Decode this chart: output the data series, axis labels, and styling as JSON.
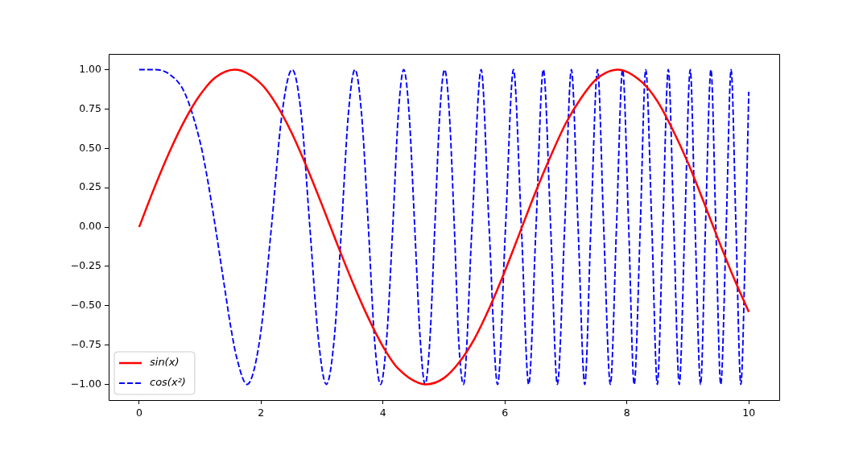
{
  "chart_data": {
    "type": "line",
    "xlim": [
      -0.5,
      10.5
    ],
    "ylim": [
      -1.1,
      1.1
    ],
    "xticks": [
      0,
      2,
      4,
      6,
      8,
      10
    ],
    "yticks": [
      {
        "value": -1,
        "label": "−1.00"
      },
      {
        "value": -0.75,
        "label": "−0.75"
      },
      {
        "value": -0.5,
        "label": "−0.50"
      },
      {
        "value": -0.25,
        "label": "−0.25"
      },
      {
        "value": 0,
        "label": "0.00"
      },
      {
        "value": 0.25,
        "label": "0.25"
      },
      {
        "value": 0.5,
        "label": "0.50"
      },
      {
        "value": 0.75,
        "label": "0.75"
      },
      {
        "value": 1,
        "label": "1.00"
      }
    ],
    "legend": "bottom left",
    "series": [
      {
        "name": "sin(x)",
        "color": "#ff0000",
        "line_style": "solid",
        "x": [
          0,
          0.25,
          0.5,
          0.75,
          1,
          1.25,
          1.57,
          2,
          2.25,
          2.5,
          2.75,
          3,
          3.25,
          3.5,
          3.75,
          4,
          4.25,
          4.71,
          5,
          5.25,
          5.5,
          5.75,
          6,
          6.25,
          6.5,
          6.75,
          7,
          7.25,
          7.5,
          7.85,
          8.25,
          8.5,
          8.75,
          9,
          9.25,
          9.5,
          9.75,
          10
        ],
        "values": [
          0,
          0.25,
          0.48,
          0.68,
          0.84,
          0.95,
          1,
          0.91,
          0.78,
          0.6,
          0.38,
          0.14,
          -0.11,
          -0.35,
          -0.57,
          -0.76,
          -0.9,
          -1,
          -0.96,
          -0.86,
          -0.71,
          -0.51,
          -0.28,
          -0.03,
          0.22,
          0.45,
          0.66,
          0.82,
          0.94,
          1,
          0.92,
          0.8,
          0.62,
          0.41,
          0.17,
          -0.08,
          -0.32,
          -0.54
        ]
      },
      {
        "name": "cos(x²)",
        "color": "#0000ff",
        "line_style": "dashed",
        "x": [
          0,
          0.25,
          0.5,
          0.75,
          1,
          1.1,
          1.25,
          1.4,
          1.5,
          1.6,
          1.77,
          1.98,
          2.17,
          2.34,
          2.51,
          2.66,
          2.8,
          2.94,
          3.07,
          3.2,
          3.32,
          3.43,
          3.54,
          3.65,
          3.76,
          3.86,
          3.96,
          4.06,
          4.16,
          4.25,
          4.34,
          4.43,
          4.52,
          4.61,
          4.69,
          4.77,
          4.85,
          4.93,
          5.01,
          5.09,
          5.17,
          5.24,
          5.32,
          5.46,
          5.61,
          5.74,
          5.88,
          6.01,
          6.14,
          6.27,
          6.39,
          6.51,
          6.63,
          6.75,
          6.86,
          6.98,
          7.09,
          7.2,
          7.31,
          7.41,
          7.52,
          7.62,
          7.73,
          7.83,
          7.93,
          8.03,
          8.12,
          8.22,
          8.31,
          8.41,
          8.5,
          8.59,
          8.68,
          8.77,
          8.86,
          8.95,
          9.04,
          9.12,
          9.21,
          9.29,
          9.38,
          9.46,
          9.54,
          9.63,
          9.71,
          9.79,
          9.87,
          9.95,
          10
        ],
        "values": [
          1,
          1,
          0.97,
          0.85,
          0.54,
          0.35,
          0,
          -0.38,
          -0.63,
          -0.83,
          -1,
          -0.71,
          0,
          0.71,
          1,
          0.71,
          0,
          -0.71,
          -1,
          -0.71,
          0,
          0.71,
          1,
          0.71,
          0,
          -0.71,
          -1,
          -0.71,
          0,
          0.71,
          1,
          0.71,
          0,
          -0.71,
          -1,
          -0.71,
          0,
          0.71,
          1,
          0.71,
          0,
          -0.71,
          -1,
          0,
          1,
          0,
          -1,
          0,
          1,
          0,
          -1,
          0,
          1,
          0,
          -1,
          0,
          1,
          0,
          -1,
          0,
          1,
          0,
          -1,
          0,
          1,
          0,
          -1,
          0,
          1,
          0,
          -1,
          0,
          1,
          0,
          -1,
          0,
          1,
          0,
          -1,
          0,
          1,
          0,
          -1,
          0,
          1,
          0,
          -1,
          0,
          0.86
        ]
      }
    ]
  }
}
